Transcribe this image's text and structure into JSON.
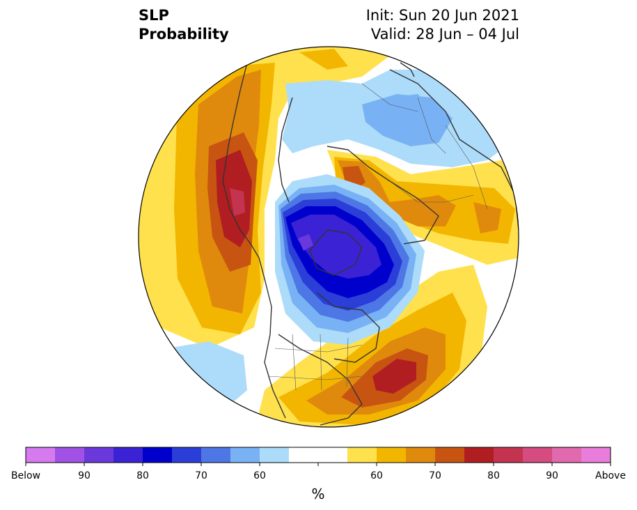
{
  "title": {
    "left_line1": "SLP",
    "left_line2": "Probability",
    "right_line1": "Init: Sun 20 Jun 2021",
    "right_line2": "Valid: 28 Jun – 04 Jul"
  },
  "colorbar": {
    "unit": "%",
    "colors": [
      "#d57aef",
      "#a152e4",
      "#6b38dc",
      "#3b22d4",
      "#0000cc",
      "#2b3ed8",
      "#4e77e6",
      "#79b2f4",
      "#acdcfa",
      "#ffffff",
      "#ffffff",
      "#ffe14d",
      "#f3b600",
      "#e08a0d",
      "#c85412",
      "#b01e21",
      "#c43450",
      "#d44c80",
      "#e06aad",
      "#e97ddc"
    ],
    "labels": [
      "Below",
      "90",
      "80",
      "70",
      "60",
      "60",
      "70",
      "80",
      "90",
      "Above"
    ]
  },
  "legend_colors": {
    "below_strong": "#0000cc",
    "above_strong": "#b01e21",
    "coast": "#333333"
  }
}
